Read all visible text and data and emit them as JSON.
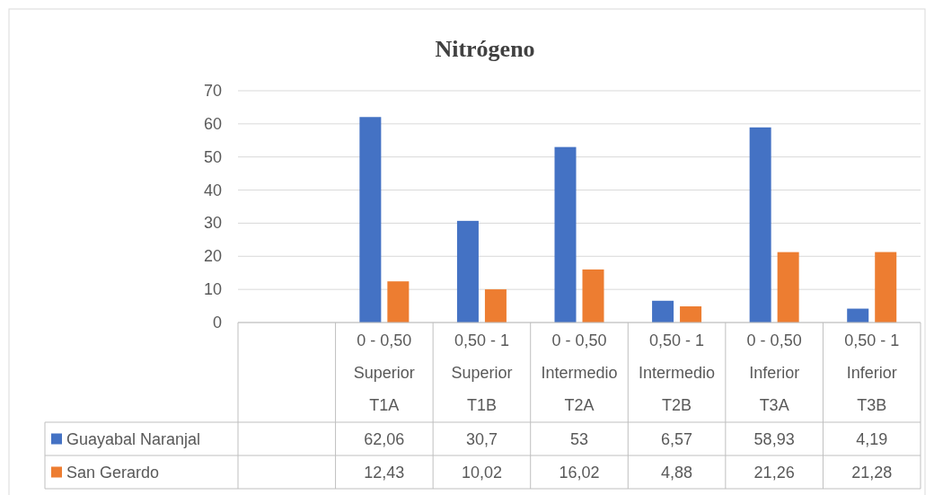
{
  "chart_data": {
    "type": "bar",
    "title": "Nitrógeno",
    "categories": [
      null,
      "0 - 0,50\nSuperior\nT1A",
      "0,50 - 1\nSuperior\nT1B",
      "0 - 0,50\nIntermedio\nT2A",
      "0,50 - 1\nIntermedio\nT2B",
      "0 - 0,50\nInferior\nT3A",
      "0,50 - 1\nInferior\nT3B"
    ],
    "series": [
      {
        "name": "Guayabal Naranjal",
        "color": "#4472c4",
        "values": [
          null,
          62.06,
          30.7,
          53,
          6.57,
          58.93,
          4.19
        ],
        "value_labels": [
          null,
          "62,06",
          "30,7",
          "53",
          "6,57",
          "58,93",
          "4,19"
        ]
      },
      {
        "name": "San Gerardo",
        "color": "#ed7d31",
        "values": [
          null,
          12.43,
          10.02,
          16.02,
          4.88,
          21.26,
          21.28
        ],
        "value_labels": [
          null,
          "12,43",
          "10,02",
          "16,02",
          "4,88",
          "21,26",
          "21,28"
        ]
      }
    ],
    "ylim": [
      0,
      70
    ],
    "yticks": [
      0,
      10,
      20,
      30,
      40,
      50,
      60,
      70
    ],
    "grid": "y",
    "legend": "bottom"
  }
}
